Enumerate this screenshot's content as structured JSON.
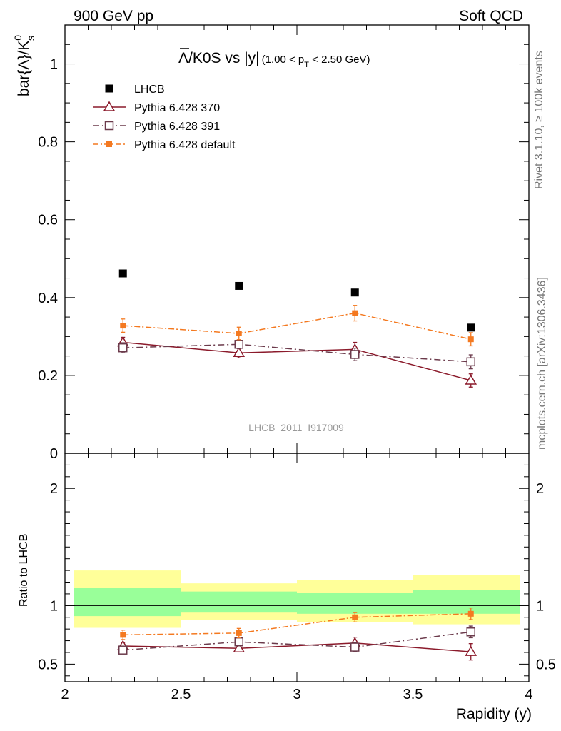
{
  "header": {
    "left": "900 GeV pp",
    "right": "Soft QCD"
  },
  "side_labels": {
    "rivet": "Rivet 3.1.10, ≥ 100k events",
    "mcplots": "mcplots.cern.ch [arXiv:1306.3436]"
  },
  "chart_data": {
    "type": "scatter",
    "title_main": "Λ/K0S vs |y|",
    "title_main_bar": "Λ",
    "title_main_rest": "/K0S vs |y|",
    "title_cut_pre": "(1.00 < p",
    "title_cut_sub": "T",
    "title_cut_post": " < 2.50 GeV)",
    "watermark": "LHCB_2011_I917009",
    "xlabel": "Rapidity (y)",
    "ylabel_main": "bar{Λ}/K",
    "ylabel_sup": "0",
    "ylabel_sub": "s",
    "ylabel_ratio": "Ratio to LHCB",
    "xlim": [
      2,
      4
    ],
    "ylim_main": [
      0,
      1.1
    ],
    "ylim_ratio": [
      0.35,
      2.3
    ],
    "x_ticks": [
      "2",
      "2.5",
      "3",
      "3.5",
      "4"
    ],
    "y_ticks_main": [
      "0",
      "0.2",
      "0.4",
      "0.6",
      "0.8",
      "1"
    ],
    "y_ticks_ratio": [
      "0.5",
      "1",
      "2"
    ],
    "x": [
      2.25,
      2.75,
      3.25,
      3.75
    ],
    "x_edges": [
      2.0,
      2.5,
      3.0,
      3.5,
      4.0
    ],
    "ratio_band_inner": [
      [
        0.91,
        1.15
      ],
      [
        0.94,
        1.12
      ],
      [
        0.93,
        1.11
      ],
      [
        0.93,
        1.13
      ]
    ],
    "ratio_band_outer": [
      [
        0.81,
        1.3
      ],
      [
        0.88,
        1.19
      ],
      [
        0.86,
        1.22
      ],
      [
        0.84,
        1.26
      ]
    ],
    "series": [
      {
        "name": "LHCB",
        "values": [
          0.462,
          0.43,
          0.413,
          0.323
        ],
        "errors": [
          0,
          0,
          0,
          0
        ],
        "ratio": [
          1,
          1,
          1,
          1
        ],
        "ratio_errors": [
          0,
          0,
          0,
          0
        ],
        "color": "#000000",
        "marker": "square-filled",
        "dash": ""
      },
      {
        "name": "Pythia 6.428 370",
        "values": [
          0.285,
          0.258,
          0.267,
          0.187
        ],
        "errors": [
          0.013,
          0.013,
          0.018,
          0.017
        ],
        "ratio": [
          0.655,
          0.635,
          0.68,
          0.605
        ],
        "ratio_errors": [
          0.03,
          0.03,
          0.05,
          0.07
        ],
        "color": "#8b1a2b",
        "marker": "triangle-open",
        "dash": ""
      },
      {
        "name": "Pythia 6.428 391",
        "values": [
          0.271,
          0.28,
          0.254,
          0.235
        ],
        "errors": [
          0.013,
          0.011,
          0.016,
          0.018
        ],
        "ratio": [
          0.62,
          0.69,
          0.645,
          0.775
        ],
        "ratio_errors": [
          0.03,
          0.03,
          0.04,
          0.05
        ],
        "color": "#6b3a4b",
        "marker": "square-open",
        "dash": "9,4,2,4"
      },
      {
        "name": "Pythia 6.428 default",
        "values": [
          0.328,
          0.308,
          0.36,
          0.293
        ],
        "errors": [
          0.017,
          0.016,
          0.02,
          0.017
        ],
        "ratio": [
          0.75,
          0.765,
          0.9,
          0.93
        ],
        "ratio_errors": [
          0.04,
          0.04,
          0.04,
          0.05
        ],
        "color": "#f47920",
        "marker": "square-filled-small",
        "dash": "8,3,2,3"
      }
    ]
  }
}
